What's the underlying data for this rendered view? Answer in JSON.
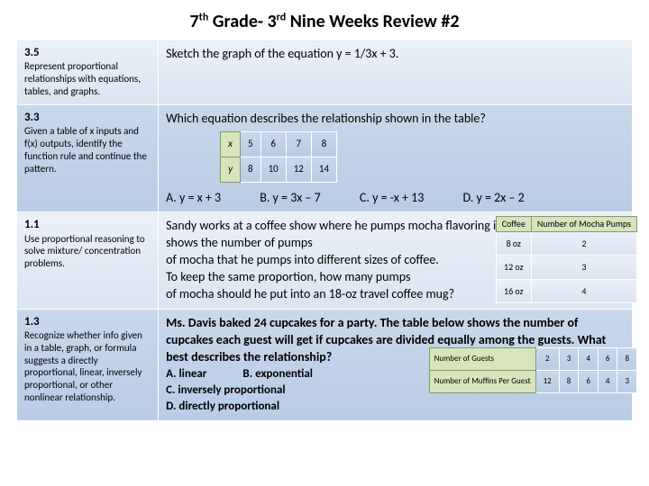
{
  "title_html": "7<sup>th</sup> Grade- 3<sup>rd</sup> Nine Weeks Review #2",
  "rows": [
    {
      "std": "3.5",
      "desc": "Represent proportional relationships with equations, tables, and graphs.",
      "q": "Sketch the graph of the equation y = 1/3x + 3."
    },
    {
      "std": "3.3",
      "desc": "Given a table of x inputs and f(x) outputs, identify the function rule and continue the pattern.",
      "q": "Which equation describes the relationship shown in the table?",
      "xy": {
        "hx": "x",
        "hy": "y",
        "x": [
          "5",
          "6",
          "7",
          "8"
        ],
        "y": [
          "8",
          "10",
          "12",
          "14"
        ]
      },
      "choices": [
        "A. y = x + 3",
        "B. y = 3x – 7",
        "C. y = -x + 13",
        "D. y = 2x – 2"
      ]
    },
    {
      "std": "1.1",
      "desc": "Use proportional reasoning to solve mixture/ concentration problems.",
      "q_lines": [
        "Sandy works at a coffee show where he pumps mocha flavoring into coffee. The table shows the number of pumps",
        "of mocha that he pumps into different sizes of coffee.",
        "To keep the same proportion, how many pumps",
        "of mocha should he put into an 18-oz travel coffee mug?"
      ],
      "coffee": {
        "h1": "Coffee",
        "h2": "Number of Mocha Pumps",
        "rows": [
          [
            "8 oz",
            "2"
          ],
          [
            "12 oz",
            "3"
          ],
          [
            "16 oz",
            "4"
          ]
        ]
      }
    },
    {
      "std": "1.3",
      "desc": "Recognize whether info given in a table, graph, or formula suggests a directly proportional, linear, inversely proportional, or other nonlinear relationship.",
      "q_bold": "Ms. Davis baked 24 cupcakes for a party. The table below shows the number of cupcakes each guest will get if cupcakes are divided equally among the guests. What best describes the relationship?",
      "choice_ab": [
        "A. linear",
        "B. exponential"
      ],
      "choice_c": "C. inversely proportional",
      "choice_d": "D. directly proportional",
      "guests": {
        "h1": "Number of Guests",
        "h2": "Number of Muffins Per Guest",
        "g": [
          "2",
          "3",
          "4",
          "6",
          "8"
        ],
        "m": [
          "12",
          "8",
          "6",
          "4",
          "3"
        ]
      }
    }
  ]
}
